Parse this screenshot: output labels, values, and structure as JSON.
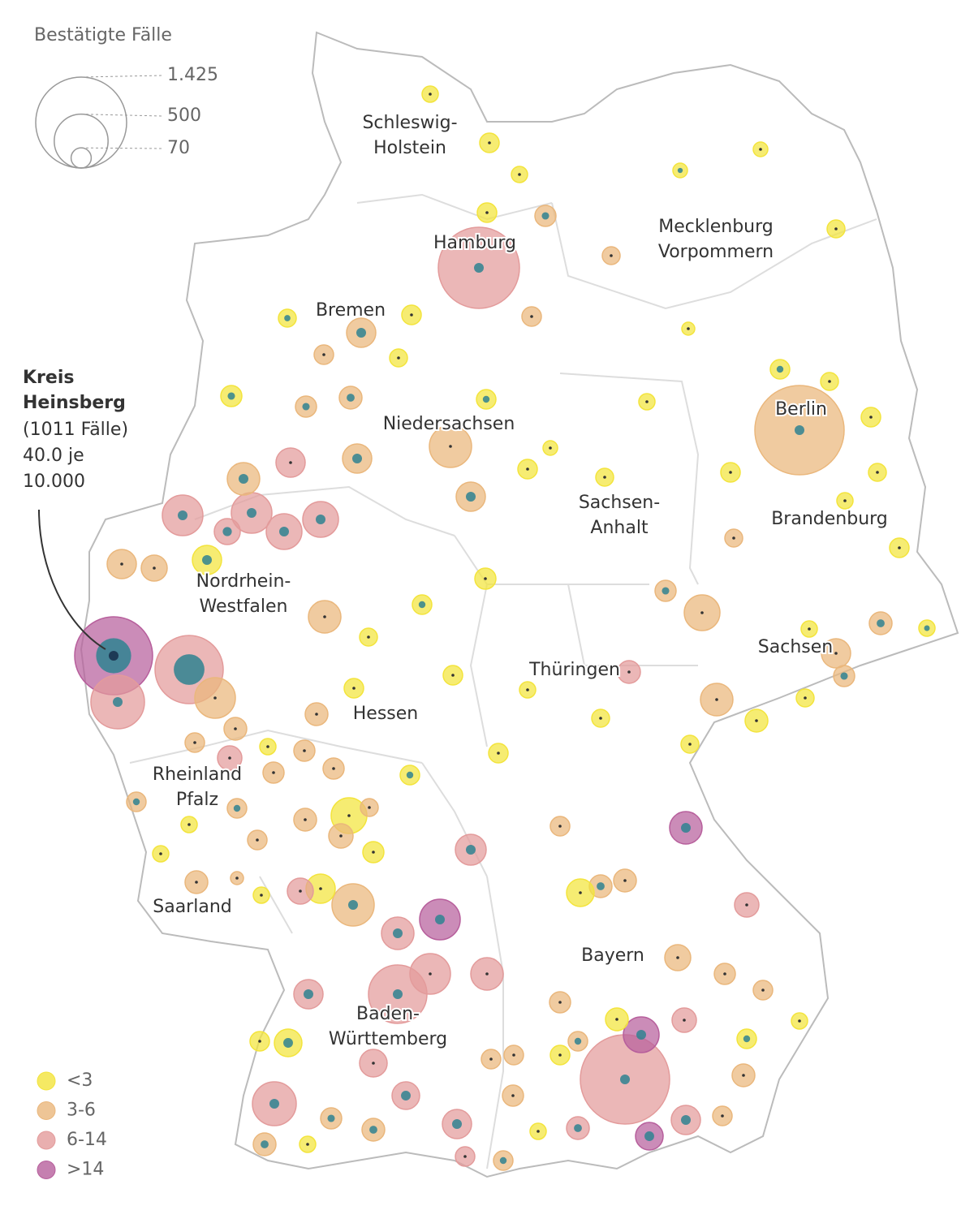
{
  "legend": {
    "title": "Bestätigte Fälle",
    "sizes": [
      {
        "value": 1425,
        "label": "1.425"
      },
      500,
      70
    ]
  },
  "color_legend": [
    {
      "label": "<3",
      "color": "#f3e43c"
    },
    {
      "label": "3-6",
      "color": "#eab77c"
    },
    {
      "label": "6-14",
      "color": "#e39b9b"
    },
    {
      "label": ">14",
      "color": "#b75f9c"
    }
  ],
  "regions": [
    [
      "Schleswig-",
      "Holstein"
    ],
    [
      "Hamburg"
    ],
    [
      "Mecklenburg",
      "Vorpommern"
    ],
    [
      "Bremen"
    ],
    [
      "Niedersachsen"
    ],
    [
      "Berlin"
    ],
    [
      "Sachsen-",
      "Anhalt"
    ],
    [
      "Brandenburg"
    ],
    [
      "Nordrhein-",
      "Westfalen"
    ],
    [
      "Sachsen"
    ],
    [
      "Thüringen"
    ],
    [
      "Hessen"
    ],
    [
      "Rheinland",
      "Pfalz"
    ],
    [
      "Saarland"
    ],
    [
      "Bayern"
    ],
    [
      "Baden-",
      "Württemberg"
    ]
  ],
  "annotation": {
    "title": [
      "Kreis",
      "Heinsberg"
    ],
    "lines": [
      "(1011 Fälle)",
      "40.0 je",
      "10.000"
    ]
  }
}
